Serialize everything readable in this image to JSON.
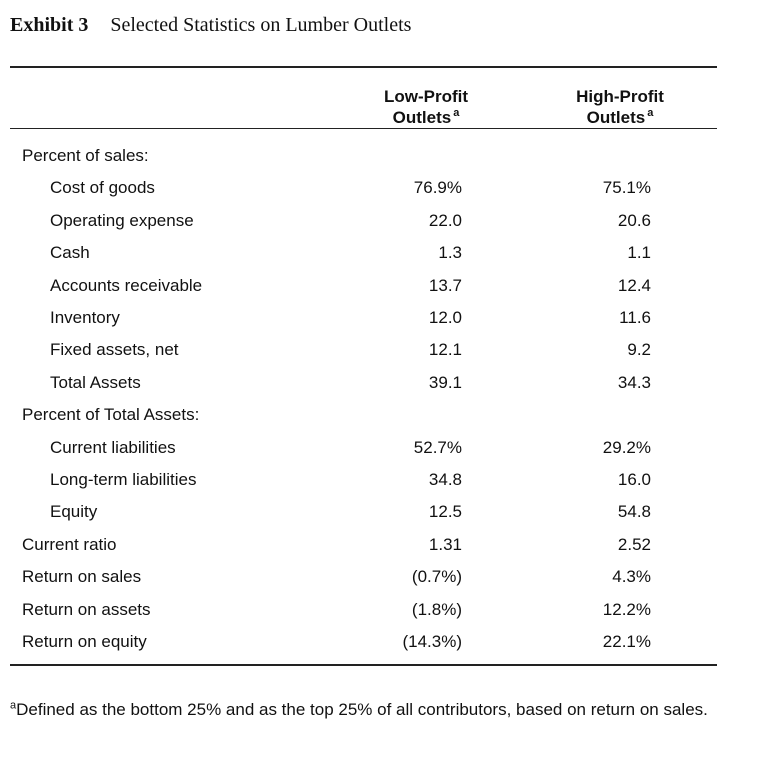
{
  "exhibit": {
    "label": "Exhibit 3",
    "title": "Selected Statistics on Lumber Outlets"
  },
  "columns": {
    "low": {
      "line1": "Low-Profit",
      "line2": "Outlets",
      "mark": "a"
    },
    "high": {
      "line1": "High-Profit",
      "line2": "Outlets",
      "mark": "a"
    }
  },
  "rows": [
    {
      "label": "Percent of sales:",
      "indent": 0,
      "low": "",
      "high": ""
    },
    {
      "label": "Cost of goods",
      "indent": 1,
      "low": "76.9%",
      "high": "75.1%"
    },
    {
      "label": "Operating expense",
      "indent": 1,
      "low": "22.0",
      "high": "20.6"
    },
    {
      "label": "Cash",
      "indent": 1,
      "low": "1.3",
      "high": "1.1"
    },
    {
      "label": "Accounts receivable",
      "indent": 1,
      "low": "13.7",
      "high": "12.4"
    },
    {
      "label": "Inventory",
      "indent": 1,
      "low": "12.0",
      "high": "11.6"
    },
    {
      "label": "Fixed assets, net",
      "indent": 1,
      "low": "12.1",
      "high": "9.2"
    },
    {
      "label": "Total Assets",
      "indent": 1,
      "low": "39.1",
      "high": "34.3"
    },
    {
      "label": "Percent of Total Assets:",
      "indent": 0,
      "low": "",
      "high": ""
    },
    {
      "label": "Current liabilities",
      "indent": 1,
      "low": "52.7%",
      "high": "29.2%"
    },
    {
      "label": "Long-term liabilities",
      "indent": 1,
      "low": "34.8",
      "high": "16.0"
    },
    {
      "label": "Equity",
      "indent": 1,
      "low": "12.5",
      "high": "54.8"
    },
    {
      "label": "Current ratio",
      "indent": 0,
      "low": "1.31",
      "high": "2.52"
    },
    {
      "label": "Return on sales",
      "indent": 0,
      "low": "(0.7%)",
      "high": "4.3%"
    },
    {
      "label": "Return on assets",
      "indent": 0,
      "low": "(1.8%)",
      "high": "12.2%"
    },
    {
      "label": "Return on equity",
      "indent": 0,
      "low": "(14.3%)",
      "high": "22.1%"
    }
  ],
  "footnote": {
    "mark": "a",
    "text": "Defined as the bottom 25% and as the top 25% of all contributors, based on return on sales."
  }
}
